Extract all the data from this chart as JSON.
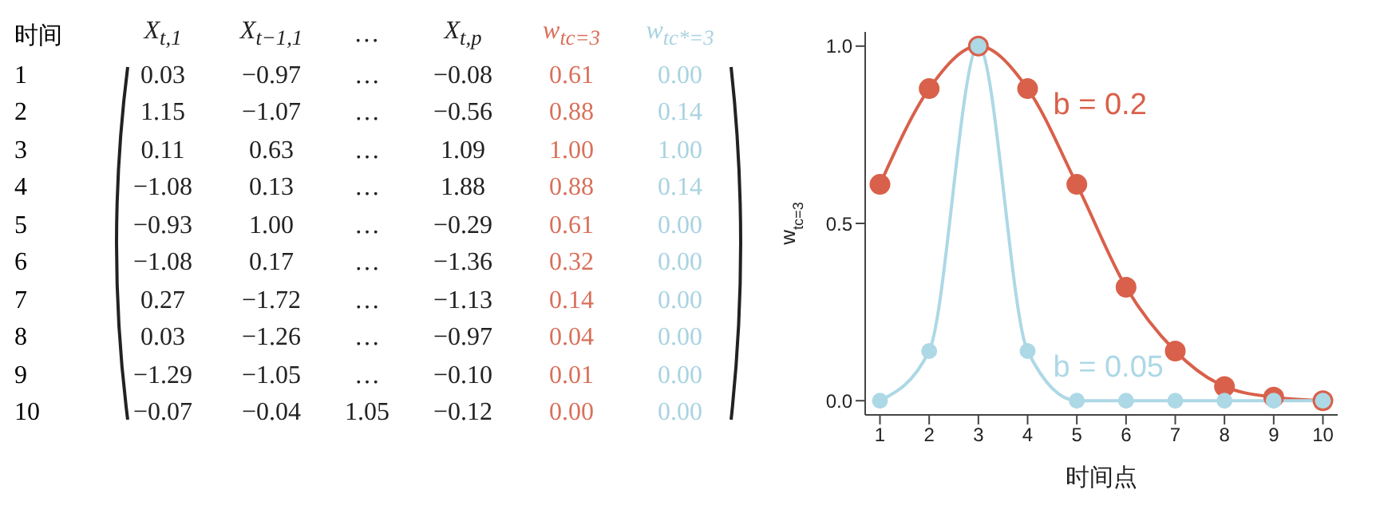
{
  "chart_data": [
    {
      "type": "heatmap",
      "ylabel": "时间",
      "categories": [
        "X$_{t,1}$",
        "X$_{t−1,1}$",
        "…",
        "X$_{t,p}$",
        "w$_{tc=3}$",
        "w$_{tc*=3}$"
      ],
      "colors": [
        "#222222",
        "#222222",
        "#222222",
        "#222222",
        "#d9705a",
        "#a9d3e0"
      ],
      "y_categories": [
        "1",
        "2",
        "3",
        "4",
        "5",
        "6",
        "7",
        "8",
        "9",
        "10"
      ],
      "cells": [
        [
          0.03,
          -0.97,
          null,
          -0.08,
          0.61,
          0.0
        ],
        [
          1.15,
          -1.07,
          null,
          -0.56,
          0.88,
          0.14
        ],
        [
          0.11,
          0.63,
          null,
          1.09,
          1.0,
          1.0
        ],
        [
          -1.08,
          0.13,
          null,
          1.88,
          0.88,
          0.14
        ],
        [
          -0.93,
          1.0,
          null,
          -0.29,
          0.61,
          0.0
        ],
        [
          -1.08,
          0.17,
          null,
          -1.36,
          0.32,
          0.0
        ],
        [
          0.27,
          -1.72,
          null,
          -1.13,
          0.14,
          0.0
        ],
        [
          0.03,
          -1.26,
          null,
          -0.97,
          0.04,
          0.0
        ],
        [
          -1.29,
          -1.05,
          null,
          -0.1,
          0.01,
          0.0
        ],
        [
          -0.07,
          -0.04,
          1.05,
          -0.12,
          0.0,
          0.0
        ]
      ],
      "cell_labels": [
        [
          "0.03",
          "−0.97",
          "…",
          "−0.08",
          "0.61",
          "0.00"
        ],
        [
          "1.15",
          "−1.07",
          "…",
          "−0.56",
          "0.88",
          "0.14"
        ],
        [
          "0.11",
          "0.63",
          "…",
          "1.09",
          "1.00",
          "1.00"
        ],
        [
          "−1.08",
          "0.13",
          "…",
          "1.88",
          "0.88",
          "0.14"
        ],
        [
          "−0.93",
          "1.00",
          "…",
          "−0.29",
          "0.61",
          "0.00"
        ],
        [
          "−1.08",
          "0.17",
          "…",
          "−1.36",
          "0.32",
          "0.00"
        ],
        [
          "0.27",
          "−1.72",
          "…",
          "−1.13",
          "0.14",
          "0.00"
        ],
        [
          "0.03",
          "−1.26",
          "…",
          "−0.97",
          "0.04",
          "0.00"
        ],
        [
          "−1.29",
          "−1.05",
          "…",
          "−0.10",
          "0.01",
          "0.00"
        ],
        [
          "−0.07",
          "−0.04",
          "1.05",
          "−0.12",
          "0.00",
          "0.00"
        ]
      ]
    },
    {
      "type": "line",
      "xlabel": "时间点",
      "ylabel": "w$_{tc=3}$",
      "x": [
        1,
        2,
        3,
        4,
        5,
        6,
        7,
        8,
        9,
        10
      ],
      "xlim": [
        0.7,
        10.3
      ],
      "xticks": [
        1,
        2,
        3,
        4,
        5,
        6,
        7,
        8,
        9,
        10
      ],
      "ylim": [
        -0.04,
        1.04
      ],
      "yticks": [
        {
          "value": 0,
          "label": "0.0"
        },
        {
          "value": 0.5,
          "label": "0.5"
        },
        {
          "value": 1,
          "label": "1.0"
        }
      ],
      "marker": "circle",
      "line_style": "solid",
      "series": [
        {
          "name": "b = 0.2",
          "color": "#d9604a",
          "values": [
            0.61,
            0.88,
            1.0,
            0.88,
            0.61,
            0.32,
            0.14,
            0.04,
            0.01,
            0.0
          ]
        },
        {
          "name": "b = 0.05",
          "color": "#add8e6",
          "values": [
            0.0,
            0.14,
            1.0,
            0.14,
            0.0,
            0.0,
            0.0,
            0.0,
            0.0,
            0.0
          ]
        }
      ]
    }
  ]
}
